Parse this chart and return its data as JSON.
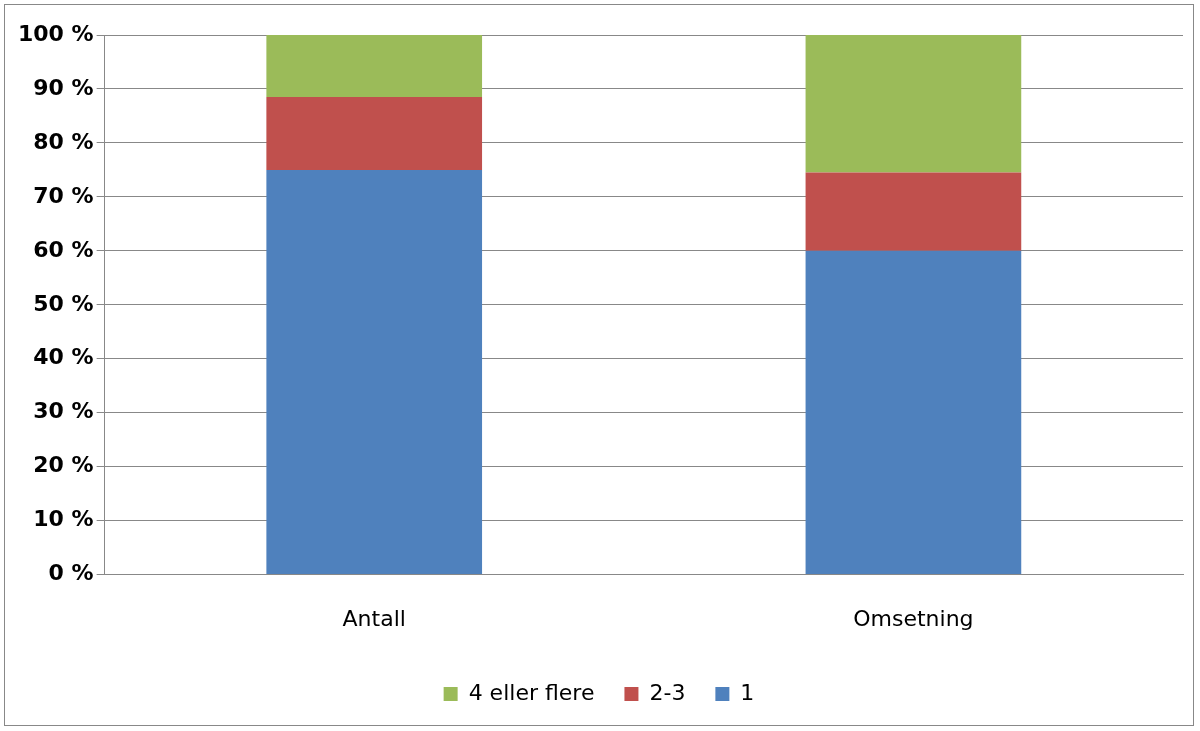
{
  "chart_data": {
    "type": "bar",
    "stacked": true,
    "categories": [
      "Antall",
      "Omsetning"
    ],
    "series": [
      {
        "name": "1",
        "color": "#4f81bd",
        "values": [
          75,
          60
        ]
      },
      {
        "name": "2-3",
        "color": "#c0504d",
        "values": [
          13.5,
          14.5
        ]
      },
      {
        "name": "4 eller flere",
        "color": "#9bbb59",
        "values": [
          11.5,
          25.5
        ]
      }
    ],
    "ylim": [
      0,
      100
    ],
    "yticks": [
      {
        "value": 0,
        "label": "0 %"
      },
      {
        "value": 10,
        "label": "10 %"
      },
      {
        "value": 20,
        "label": "20 %"
      },
      {
        "value": 30,
        "label": "30 %"
      },
      {
        "value": 40,
        "label": "40 %"
      },
      {
        "value": 50,
        "label": "50 %"
      },
      {
        "value": 60,
        "label": "60 %"
      },
      {
        "value": 70,
        "label": "70 %"
      },
      {
        "value": 80,
        "label": "80 %"
      },
      {
        "value": 90,
        "label": "90 %"
      },
      {
        "value": 100,
        "label": "100 %"
      }
    ],
    "grid": "y",
    "legend": "bottom"
  }
}
